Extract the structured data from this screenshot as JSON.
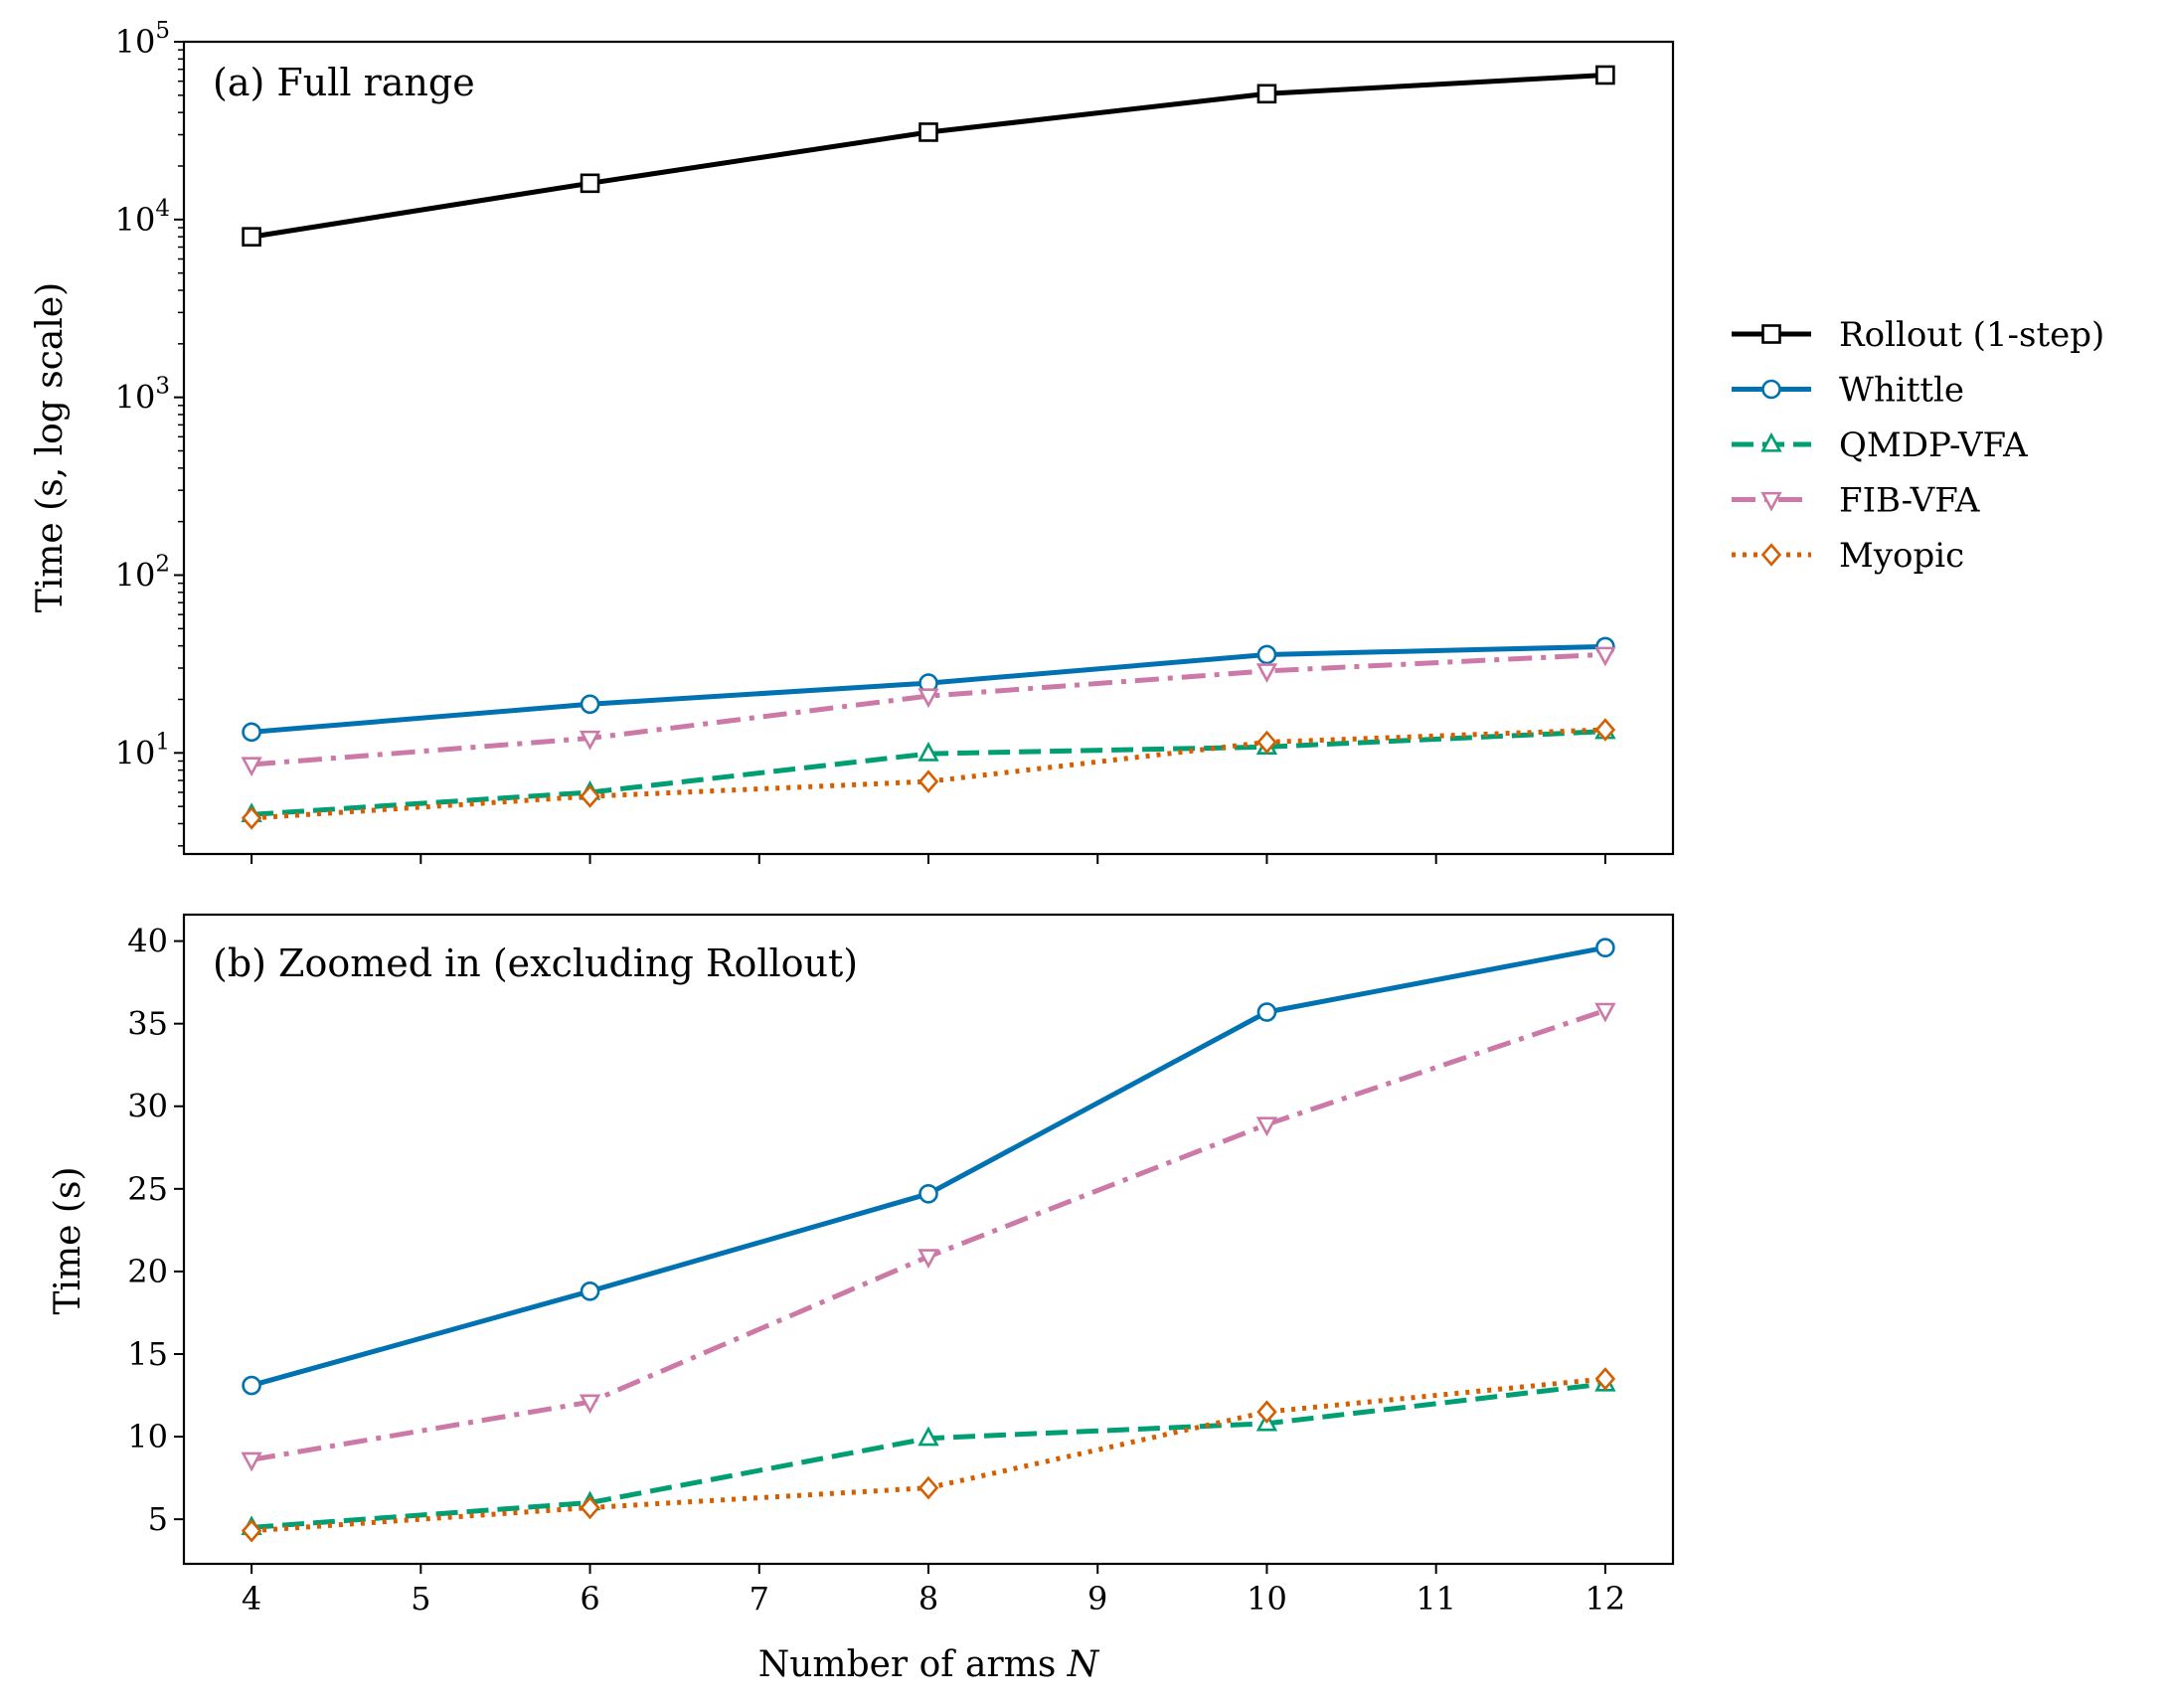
{
  "chart_data": [
    {
      "type": "line",
      "title": "(a) Full range",
      "xlabel": "Number of arms N",
      "xlabel_prefix": "Number of arms ",
      "xlabel_var": "N",
      "ylabel": "Time (s, log scale)",
      "yscale": "log",
      "xlim": [
        3.6,
        12.4
      ],
      "ylim": [
        2.7,
        100000
      ],
      "x": [
        4,
        6,
        8,
        10,
        12
      ],
      "x_ticks": [
        4,
        5,
        6,
        7,
        8,
        9,
        10,
        11,
        12
      ],
      "y_ticks": [
        {
          "value": 10,
          "base": "10",
          "exp": "1"
        },
        {
          "value": 100,
          "base": "10",
          "exp": "2"
        },
        {
          "value": 1000,
          "base": "10",
          "exp": "3"
        },
        {
          "value": 10000,
          "base": "10",
          "exp": "4"
        },
        {
          "value": 100000,
          "base": "10",
          "exp": "5"
        }
      ],
      "series": [
        {
          "name": "Rollout (1-step)",
          "values": [
            8000,
            16000,
            31000,
            51000,
            65000
          ],
          "color": "#000000",
          "marker": "square",
          "dash": "solid"
        },
        {
          "name": "Whittle",
          "values": [
            13.1,
            18.8,
            24.7,
            35.7,
            39.6
          ],
          "color": "#0072b2",
          "marker": "circle",
          "dash": "solid"
        },
        {
          "name": "QMDP-VFA",
          "values": [
            4.5,
            6.0,
            9.9,
            10.8,
            13.2
          ],
          "color": "#009e73",
          "marker": "triangle-up",
          "dash": "dashed"
        },
        {
          "name": "FIB-VFA",
          "values": [
            8.6,
            12.1,
            20.9,
            28.9,
            35.8
          ],
          "color": "#cc79a7",
          "marker": "triangle-down",
          "dash": "dashdot"
        },
        {
          "name": "Myopic",
          "values": [
            4.3,
            5.7,
            6.9,
            11.5,
            13.5
          ],
          "color": "#d55e00",
          "marker": "diamond",
          "dash": "dotted"
        }
      ]
    },
    {
      "type": "line",
      "title": "(b) Zoomed in (excluding Rollout)",
      "xlabel": "Number of arms N",
      "xlabel_prefix": "Number of arms ",
      "xlabel_var": "N",
      "ylabel": "Time (s)",
      "yscale": "linear",
      "xlim": [
        3.6,
        12.4
      ],
      "ylim": [
        2.3,
        41.6
      ],
      "x": [
        4,
        6,
        8,
        10,
        12
      ],
      "x_ticks": [
        4,
        5,
        6,
        7,
        8,
        9,
        10,
        11,
        12
      ],
      "y_ticks": [
        5,
        10,
        15,
        20,
        25,
        30,
        35,
        40
      ],
      "series": [
        {
          "name": "Whittle",
          "values": [
            13.1,
            18.8,
            24.7,
            35.7,
            39.6
          ],
          "color": "#0072b2",
          "marker": "circle",
          "dash": "solid"
        },
        {
          "name": "QMDP-VFA",
          "values": [
            4.5,
            6.0,
            9.9,
            10.8,
            13.2
          ],
          "color": "#009e73",
          "marker": "triangle-up",
          "dash": "dashed"
        },
        {
          "name": "FIB-VFA",
          "values": [
            8.6,
            12.1,
            20.9,
            28.9,
            35.8
          ],
          "color": "#cc79a7",
          "marker": "triangle-down",
          "dash": "dashdot"
        },
        {
          "name": "Myopic",
          "values": [
            4.3,
            5.7,
            6.9,
            11.5,
            13.5
          ],
          "color": "#d55e00",
          "marker": "diamond",
          "dash": "dotted"
        }
      ]
    }
  ],
  "legend": {
    "placement": "right",
    "entries": [
      "Rollout (1-step)",
      "Whittle",
      "QMDP-VFA",
      "FIB-VFA",
      "Myopic"
    ]
  }
}
